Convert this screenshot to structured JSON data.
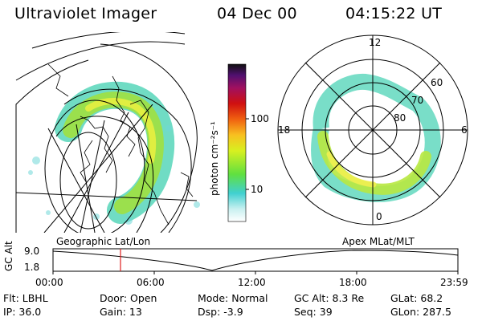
{
  "header": {
    "instrument": "Ultraviolet Imager",
    "date": "04 Dec 00",
    "time": "04:15:22 UT"
  },
  "colorbar": {
    "unit_label": "photon cm⁻²s⁻¹",
    "ticks": [
      "100",
      "10"
    ]
  },
  "left_panel": {
    "projection": "Geographic Lat/Lon"
  },
  "right_panel": {
    "projection": "Apex MLat/MLT",
    "mlt_labels": [
      "12",
      "18",
      "6",
      "0"
    ],
    "lat_labels": [
      "60",
      "70",
      "80"
    ]
  },
  "altitude_plot": {
    "ylabel": "GC Alt",
    "yticks": [
      "9.0",
      "1.8"
    ],
    "xticks": [
      "00:00",
      "06:00",
      "12:00",
      "18:00",
      "23:59"
    ],
    "marker_time": "04:15",
    "marker_color": "#e02020"
  },
  "info": {
    "flt": "Flt: LBHL",
    "ip": "IP: 36.0",
    "door": "Door: Open",
    "gain": "Gain: 13",
    "mode": "Mode: Normal",
    "dsp": "Dsp:    -3.9",
    "gcalt": "GC Alt: 8.3 Re",
    "seq": "Seq: 39",
    "glat": "GLat:   68.2",
    "glon": "GLon: 287.5"
  }
}
